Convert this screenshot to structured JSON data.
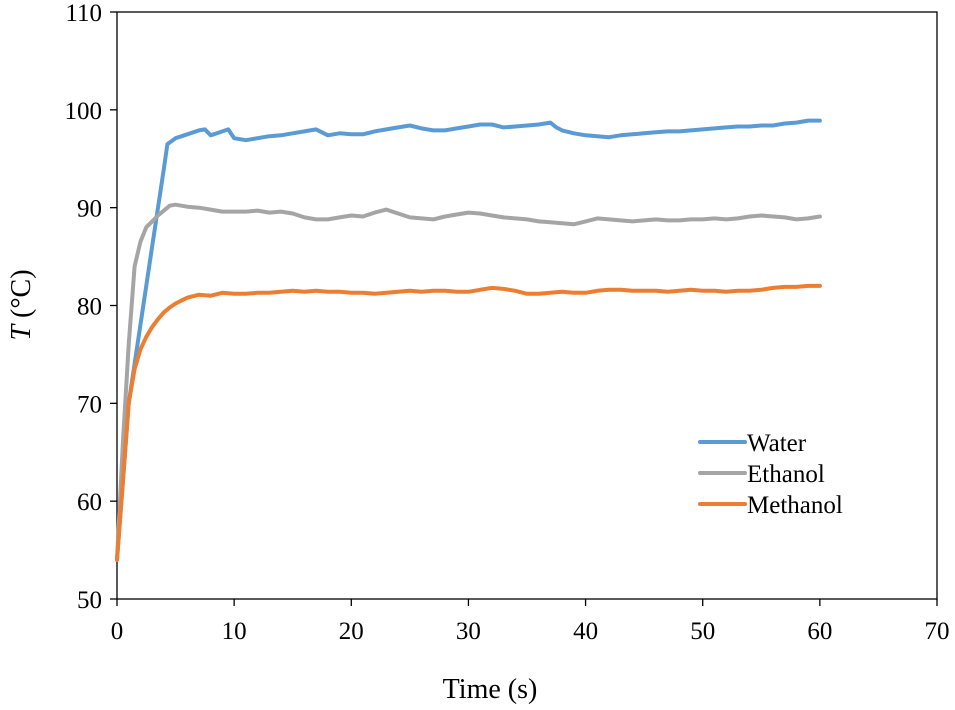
{
  "chart_data": {
    "type": "line",
    "title": "",
    "xlabel": "Time (s)",
    "ylabel_italic": "T",
    "ylabel_rest": " (°C)",
    "xlim": [
      0,
      70
    ],
    "ylim": [
      50,
      110
    ],
    "xticks": [
      0,
      10,
      20,
      30,
      40,
      50,
      60,
      70
    ],
    "yticks": [
      50,
      60,
      70,
      80,
      90,
      100,
      110
    ],
    "grid": false,
    "legend_position": "lower-right",
    "series": [
      {
        "name": "Water",
        "color": "#5B9BD5",
        "x": [
          0,
          0.5,
          1,
          2,
          3,
          4,
          4.3,
          5,
          6,
          7,
          7.5,
          8,
          9,
          9.5,
          10,
          11,
          12,
          13,
          14,
          15,
          16,
          17,
          18,
          19,
          20,
          21,
          22,
          23,
          24,
          25,
          26,
          27,
          28,
          29,
          30,
          31,
          32,
          33,
          34,
          35,
          36,
          37,
          37.5,
          38,
          39,
          40,
          41,
          42,
          43,
          44,
          45,
          46,
          47,
          48,
          49,
          50,
          51,
          52,
          53,
          54,
          55,
          56,
          57,
          58,
          59,
          60
        ],
        "y": [
          54,
          62,
          70,
          78,
          86,
          94,
          96.5,
          97.1,
          97.5,
          97.9,
          98,
          97.4,
          97.8,
          98,
          97.1,
          96.9,
          97.1,
          97.3,
          97.4,
          97.6,
          97.8,
          98,
          97.4,
          97.6,
          97.5,
          97.5,
          97.8,
          98,
          98.2,
          98.4,
          98.1,
          97.9,
          97.9,
          98.1,
          98.3,
          98.5,
          98.5,
          98.2,
          98.3,
          98.4,
          98.5,
          98.7,
          98.2,
          97.9,
          97.6,
          97.4,
          97.3,
          97.2,
          97.4,
          97.5,
          97.6,
          97.7,
          97.8,
          97.8,
          97.9,
          98,
          98.1,
          98.2,
          98.3,
          98.3,
          98.4,
          98.4,
          98.6,
          98.7,
          98.9,
          98.9
        ]
      },
      {
        "name": "Ethanol",
        "color": "#A5A5A5",
        "x": [
          0,
          0.5,
          1,
          1.5,
          2,
          2.5,
          3,
          3.5,
          4,
          4.5,
          5,
          5.5,
          6,
          7,
          8,
          9,
          10,
          11,
          12,
          13,
          14,
          15,
          16,
          17,
          18,
          19,
          20,
          21,
          22,
          23,
          24,
          25,
          26,
          27,
          28,
          29,
          30,
          31,
          32,
          33,
          34,
          35,
          36,
          37,
          38,
          39,
          40,
          41,
          42,
          43,
          44,
          45,
          46,
          47,
          48,
          49,
          50,
          51,
          52,
          53,
          54,
          55,
          56,
          57,
          58,
          59,
          60
        ],
        "y": [
          54,
          66,
          76,
          84,
          86.5,
          88,
          88.6,
          89.2,
          89.7,
          90.2,
          90.3,
          90.2,
          90.1,
          90,
          89.8,
          89.6,
          89.6,
          89.6,
          89.7,
          89.5,
          89.6,
          89.4,
          89,
          88.8,
          88.8,
          89,
          89.2,
          89.1,
          89.5,
          89.8,
          89.4,
          89,
          88.9,
          88.8,
          89.1,
          89.3,
          89.5,
          89.4,
          89.2,
          89,
          88.9,
          88.8,
          88.6,
          88.5,
          88.4,
          88.3,
          88.6,
          88.9,
          88.8,
          88.7,
          88.6,
          88.7,
          88.8,
          88.7,
          88.7,
          88.8,
          88.8,
          88.9,
          88.8,
          88.9,
          89.1,
          89.2,
          89.1,
          89,
          88.8,
          88.9,
          89.1
        ]
      },
      {
        "name": "Methanol",
        "color": "#ED7D31",
        "x": [
          0,
          0.5,
          1,
          1.5,
          2,
          2.5,
          3,
          3.5,
          4,
          4.5,
          5,
          5.5,
          6,
          7,
          8,
          9,
          10,
          11,
          12,
          13,
          14,
          15,
          16,
          17,
          18,
          19,
          20,
          21,
          22,
          23,
          24,
          25,
          26,
          27,
          28,
          29,
          30,
          31,
          32,
          33,
          34,
          35,
          36,
          37,
          38,
          39,
          40,
          41,
          42,
          43,
          44,
          45,
          46,
          47,
          48,
          49,
          50,
          51,
          52,
          53,
          54,
          55,
          56,
          57,
          58,
          59,
          60
        ],
        "y": [
          54,
          62,
          70,
          73.5,
          75.5,
          76.8,
          77.8,
          78.6,
          79.3,
          79.8,
          80.2,
          80.5,
          80.8,
          81.1,
          81,
          81.3,
          81.2,
          81.2,
          81.3,
          81.3,
          81.4,
          81.5,
          81.4,
          81.5,
          81.4,
          81.4,
          81.3,
          81.3,
          81.2,
          81.3,
          81.4,
          81.5,
          81.4,
          81.5,
          81.5,
          81.4,
          81.4,
          81.6,
          81.8,
          81.7,
          81.5,
          81.2,
          81.2,
          81.3,
          81.4,
          81.3,
          81.3,
          81.5,
          81.6,
          81.6,
          81.5,
          81.5,
          81.5,
          81.4,
          81.5,
          81.6,
          81.5,
          81.5,
          81.4,
          81.5,
          81.5,
          81.6,
          81.8,
          81.9,
          81.9,
          82,
          82
        ]
      }
    ]
  }
}
